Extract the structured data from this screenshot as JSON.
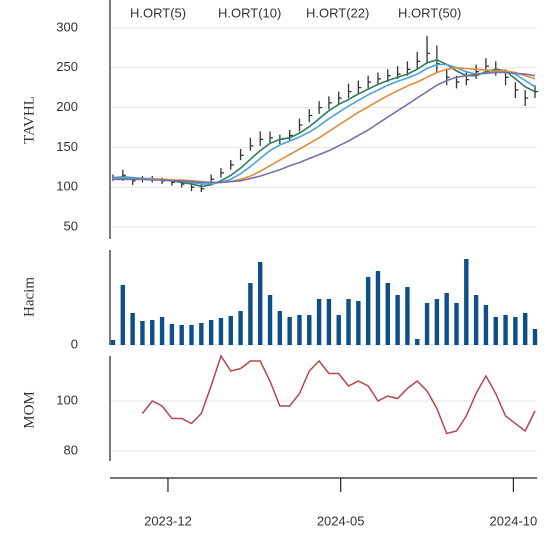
{
  "chart_data": [
    {
      "type": "ohlc",
      "ylabel": "TAVHL",
      "x": [
        0,
        1,
        2,
        3,
        4,
        5,
        6,
        7,
        8,
        9,
        10,
        11,
        12,
        13,
        14,
        15,
        16,
        17,
        18,
        19,
        20,
        21,
        22,
        23,
        24,
        25,
        26,
        27,
        28,
        29,
        30,
        31,
        32,
        33,
        34,
        35,
        36,
        37,
        38,
        39,
        40,
        41,
        42,
        43
      ],
      "xlim": [
        0,
        43
      ],
      "close": [
        112,
        115,
        108,
        110,
        110,
        108,
        106,
        104,
        100,
        98,
        110,
        118,
        128,
        140,
        152,
        160,
        162,
        160,
        165,
        178,
        190,
        200,
        206,
        212,
        220,
        225,
        232,
        236,
        240,
        242,
        248,
        258,
        268,
        255,
        238,
        232,
        235,
        245,
        252,
        248,
        238,
        222,
        212,
        220
      ],
      "high": [
        116,
        122,
        113,
        114,
        114,
        112,
        110,
        108,
        105,
        104,
        116,
        124,
        134,
        148,
        162,
        170,
        170,
        166,
        172,
        186,
        198,
        208,
        214,
        220,
        230,
        234,
        240,
        244,
        248,
        252,
        258,
        270,
        290,
        278,
        248,
        240,
        244,
        254,
        262,
        258,
        248,
        232,
        222,
        228
      ],
      "low": [
        108,
        108,
        103,
        106,
        106,
        104,
        102,
        100,
        95,
        94,
        104,
        112,
        122,
        134,
        146,
        152,
        156,
        154,
        158,
        170,
        182,
        192,
        198,
        204,
        212,
        218,
        224,
        228,
        232,
        236,
        240,
        248,
        256,
        244,
        228,
        224,
        228,
        236,
        244,
        240,
        228,
        212,
        202,
        212
      ],
      "bar_color": "#333333",
      "series": [
        {
          "name": "H.ORT(5)",
          "color": "#2f7f5f",
          "values": [
            112,
            113,
            112,
            111,
            110,
            109,
            108,
            106,
            104,
            101,
            103,
            108,
            115,
            124,
            135,
            146,
            155,
            160,
            162,
            168,
            176,
            186,
            196,
            204,
            210,
            217,
            223,
            229,
            234,
            238,
            242,
            248,
            256,
            260,
            254,
            246,
            240,
            240,
            245,
            248,
            246,
            236,
            226,
            220
          ]
        },
        {
          "name": "H.ORT(10)",
          "color": "#4aa3d9",
          "values": [
            112,
            112,
            112,
            111,
            111,
            110,
            109,
            108,
            106,
            104,
            104,
            106,
            110,
            117,
            126,
            136,
            146,
            153,
            158,
            163,
            169,
            177,
            186,
            194,
            202,
            209,
            216,
            222,
            228,
            233,
            237,
            242,
            249,
            254,
            254,
            250,
            245,
            242,
            243,
            245,
            246,
            242,
            234,
            226
          ]
        },
        {
          "name": "H.ORT(22)",
          "color": "#e08c3c",
          "values": [
            110,
            110,
            110,
            110,
            110,
            110,
            109,
            109,
            108,
            107,
            106,
            106,
            107,
            110,
            114,
            120,
            127,
            134,
            141,
            148,
            155,
            162,
            170,
            178,
            186,
            194,
            201,
            208,
            215,
            221,
            227,
            232,
            238,
            244,
            248,
            250,
            249,
            248,
            247,
            246,
            246,
            244,
            240,
            236
          ]
        },
        {
          "name": "H.ORT(50)",
          "color": "#7a70a8",
          "values": [
            110,
            110,
            110,
            110,
            109,
            109,
            108,
            108,
            107,
            106,
            106,
            106,
            107,
            108,
            111,
            114,
            118,
            122,
            127,
            131,
            136,
            141,
            146,
            152,
            158,
            165,
            172,
            180,
            188,
            196,
            204,
            212,
            220,
            228,
            234,
            238,
            240,
            242,
            243,
            244,
            244,
            243,
            242,
            240
          ]
        }
      ],
      "ylim": [
        35,
        335
      ],
      "yticks": [
        50,
        100,
        150,
        200,
        250,
        300
      ],
      "grid": true
    },
    {
      "type": "bar",
      "ylabel": "Hacim",
      "x": [
        0,
        1,
        2,
        3,
        4,
        5,
        6,
        7,
        8,
        9,
        10,
        11,
        12,
        13,
        14,
        15,
        16,
        17,
        18,
        19,
        20,
        21,
        22,
        23,
        24,
        25,
        26,
        27,
        28,
        29,
        30,
        31,
        32,
        33,
        34,
        35,
        36,
        37,
        38,
        39,
        40,
        41,
        42,
        43
      ],
      "xlim": [
        0,
        43
      ],
      "color": "#0d4f86",
      "values": [
        5,
        60,
        32,
        24,
        25,
        28,
        21,
        20,
        20,
        22,
        25,
        27,
        29,
        34,
        62,
        83,
        50,
        34,
        28,
        30,
        30,
        46,
        46,
        30,
        46,
        44,
        68,
        74,
        62,
        50,
        58,
        6,
        42,
        46,
        52,
        42,
        86,
        50,
        40,
        28,
        30,
        28,
        32,
        16
      ],
      "ylim": [
        0,
        95
      ],
      "yticks": [
        0
      ],
      "grid": true
    },
    {
      "type": "line",
      "ylabel": "MOM",
      "x": [
        0,
        1,
        2,
        3,
        4,
        5,
        6,
        7,
        8,
        9,
        10,
        11,
        12,
        13,
        14,
        15,
        16,
        17,
        18,
        19,
        20,
        21,
        22,
        23,
        24,
        25,
        26,
        27,
        28,
        29,
        30,
        31,
        32,
        33,
        34,
        35,
        36,
        37,
        38,
        39,
        40,
        41,
        42,
        43
      ],
      "xlim": [
        0,
        43
      ],
      "color": "#b5474f",
      "values": [
        null,
        null,
        null,
        95,
        100,
        98,
        93,
        93,
        91,
        95,
        106,
        118,
        112,
        113,
        116,
        116,
        108,
        98,
        98,
        103,
        112,
        116,
        111,
        111,
        106,
        108,
        106,
        100,
        102,
        101,
        105,
        108,
        104,
        97,
        87,
        88,
        94,
        103,
        110,
        103,
        94,
        91,
        88,
        96
      ],
      "ylim": [
        76,
        118
      ],
      "yticks": [
        80,
        100
      ],
      "grid": true,
      "xticks": [
        {
          "value": 5.6,
          "label": "2023-12"
        },
        {
          "value": 23.2,
          "label": "2024-05"
        },
        {
          "value": 40.8,
          "label": "2024-10"
        }
      ]
    }
  ]
}
